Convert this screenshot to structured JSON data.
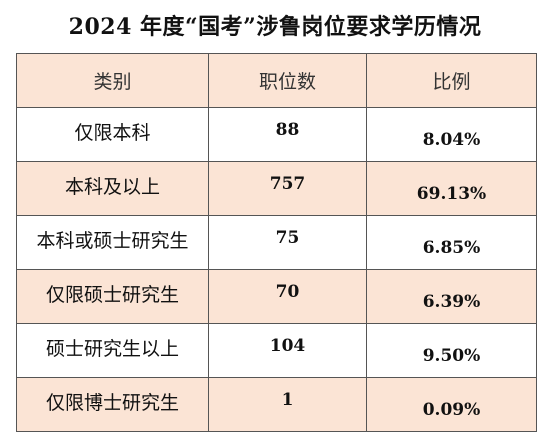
{
  "title": "2024 年度“国考”涉鲁岗位要求学历情况",
  "table": {
    "headers": [
      "类别",
      "职位数",
      "比例"
    ],
    "rows": [
      {
        "category": "仅限本科",
        "count": "88",
        "ratio": "8.04%"
      },
      {
        "category": "本科及以上",
        "count": "757",
        "ratio": "69.13%"
      },
      {
        "category": "本科或硕士研究生",
        "count": "75",
        "ratio": "6.85%"
      },
      {
        "category": "仅限硕士研究生",
        "count": "70",
        "ratio": "6.39%"
      },
      {
        "category": "硕士研究生以上",
        "count": "104",
        "ratio": "9.50%"
      },
      {
        "category": "仅限博士研究生",
        "count": "1",
        "ratio": "0.09%"
      }
    ]
  },
  "colors": {
    "shaded_row": "#fbe4d5",
    "border": "#555555"
  }
}
